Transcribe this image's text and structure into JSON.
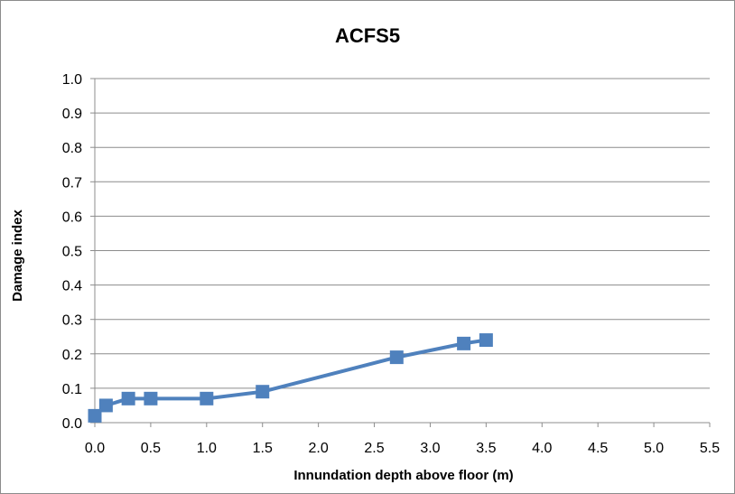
{
  "chart_data": {
    "type": "line",
    "title": "ACFS5",
    "xlabel": "Innundation depth above floor (m)",
    "ylabel": "Damage index",
    "xlim": [
      0,
      5.5
    ],
    "ylim": [
      0,
      1.0
    ],
    "x_ticks": [
      "0.0",
      "0.5",
      "1.0",
      "1.5",
      "2.0",
      "2.5",
      "3.0",
      "3.5",
      "4.0",
      "4.5",
      "5.0",
      "5.5"
    ],
    "y_ticks": [
      "0.0",
      "0.1",
      "0.2",
      "0.3",
      "0.4",
      "0.5",
      "0.6",
      "0.7",
      "0.8",
      "0.9",
      "1.0"
    ],
    "grid": "horizontal",
    "legend": "none",
    "series": [
      {
        "color": "#4f81bd",
        "marker": "square",
        "points": [
          {
            "x": 0.0,
            "y": 0.02
          },
          {
            "x": 0.1,
            "y": 0.05
          },
          {
            "x": 0.3,
            "y": 0.07
          },
          {
            "x": 0.5,
            "y": 0.07
          },
          {
            "x": 1.0,
            "y": 0.07
          },
          {
            "x": 1.5,
            "y": 0.09
          },
          {
            "x": 2.7,
            "y": 0.19
          },
          {
            "x": 3.3,
            "y": 0.23
          },
          {
            "x": 3.5,
            "y": 0.24
          }
        ]
      }
    ]
  }
}
